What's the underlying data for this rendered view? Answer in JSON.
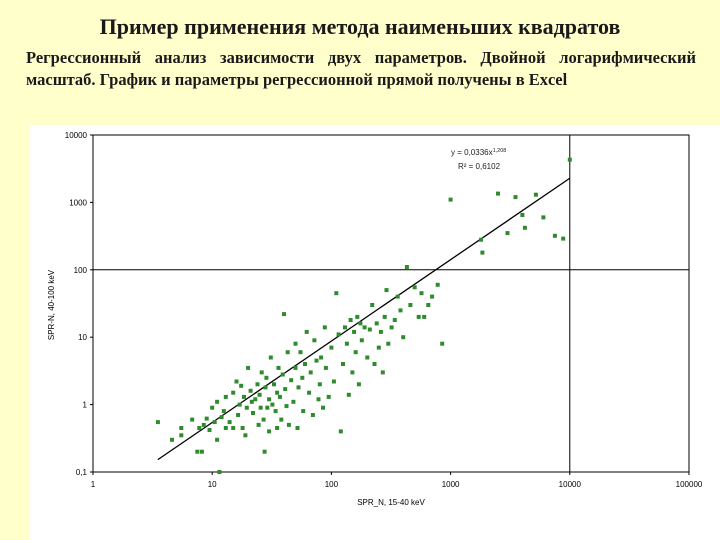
{
  "slide": {
    "title": "Пример применения метода наименьших квадратов",
    "subtitle": "Регрессионный анализ зависимости двух параметров. Двойной логарифмический масштаб. График и параметры регрессионной прямой получены в Excel"
  },
  "colors": {
    "background": "#ffffcc",
    "plot_background": "#ffffff",
    "points": "#2e8b2e",
    "trendline": "#000000",
    "reference_lines": "#000000"
  },
  "chart_data": {
    "type": "scatter",
    "title": "",
    "xlabel": "SPR_N, 15-40 keV",
    "ylabel": "SPR-N, 40-100 keV",
    "x_scale": "log",
    "y_scale": "log",
    "xlim": [
      1,
      100000
    ],
    "ylim": [
      0.1,
      10000
    ],
    "x_ticks": [
      1,
      10,
      100,
      1000,
      10000,
      100000
    ],
    "x_tick_labels": [
      "1",
      "10",
      "100",
      "1000",
      "10000",
      "100000"
    ],
    "y_ticks": [
      0.1,
      1,
      10,
      100,
      1000,
      10000
    ],
    "y_tick_labels": [
      "0,1",
      "1",
      "10",
      "100",
      "1000",
      "10000"
    ],
    "grid": false,
    "legend": "none",
    "reference_lines": [
      {
        "orientation": "horizontal",
        "y": 100
      },
      {
        "orientation": "vertical",
        "x": 10000
      }
    ],
    "trendline": {
      "equation_text": "y = 0,0336x^1,208",
      "r2_text": "R² = 0,6102",
      "coefficient": 0.0336,
      "exponent": 1.208,
      "x_range": [
        3.5,
        10000
      ]
    },
    "points": [
      {
        "x": 3.5,
        "y": 0.55
      },
      {
        "x": 4.6,
        "y": 0.3
      },
      {
        "x": 5.5,
        "y": 0.45
      },
      {
        "x": 5.5,
        "y": 0.35
      },
      {
        "x": 6.8,
        "y": 0.6
      },
      {
        "x": 7.5,
        "y": 0.2
      },
      {
        "x": 7.8,
        "y": 0.45
      },
      {
        "x": 8.2,
        "y": 0.2
      },
      {
        "x": 8.5,
        "y": 0.5
      },
      {
        "x": 9.0,
        "y": 0.62
      },
      {
        "x": 9.5,
        "y": 0.42
      },
      {
        "x": 10.0,
        "y": 0.9
      },
      {
        "x": 10.5,
        "y": 0.55
      },
      {
        "x": 11.0,
        "y": 1.1
      },
      {
        "x": 11.0,
        "y": 0.3
      },
      {
        "x": 11.5,
        "y": 0.1
      },
      {
        "x": 12.0,
        "y": 0.65
      },
      {
        "x": 12.5,
        "y": 0.8
      },
      {
        "x": 13.0,
        "y": 1.3
      },
      {
        "x": 13.0,
        "y": 0.45
      },
      {
        "x": 14.0,
        "y": 0.55
      },
      {
        "x": 15.0,
        "y": 1.5
      },
      {
        "x": 15.0,
        "y": 0.45
      },
      {
        "x": 16.0,
        "y": 2.2
      },
      {
        "x": 16.5,
        "y": 0.7
      },
      {
        "x": 17.0,
        "y": 1.0
      },
      {
        "x": 17.5,
        "y": 1.9
      },
      {
        "x": 18.0,
        "y": 0.45
      },
      {
        "x": 18.5,
        "y": 1.3
      },
      {
        "x": 19.0,
        "y": 0.35
      },
      {
        "x": 19.5,
        "y": 0.9
      },
      {
        "x": 20.0,
        "y": 3.5
      },
      {
        "x": 21.0,
        "y": 1.6
      },
      {
        "x": 21.5,
        "y": 1.1
      },
      {
        "x": 22.0,
        "y": 0.75
      },
      {
        "x": 23.0,
        "y": 1.2
      },
      {
        "x": 24.0,
        "y": 2.0
      },
      {
        "x": 24.5,
        "y": 0.5
      },
      {
        "x": 25.0,
        "y": 1.4
      },
      {
        "x": 25.5,
        "y": 0.9
      },
      {
        "x": 26.0,
        "y": 3.0
      },
      {
        "x": 27.0,
        "y": 0.6
      },
      {
        "x": 27.5,
        "y": 0.2
      },
      {
        "x": 28.0,
        "y": 1.8
      },
      {
        "x": 28.5,
        "y": 2.5
      },
      {
        "x": 29.0,
        "y": 0.9
      },
      {
        "x": 30.0,
        "y": 1.2
      },
      {
        "x": 30.0,
        "y": 0.4
      },
      {
        "x": 31.0,
        "y": 5.0
      },
      {
        "x": 32.0,
        "y": 1.0
      },
      {
        "x": 33.0,
        "y": 2.0
      },
      {
        "x": 34.0,
        "y": 0.8
      },
      {
        "x": 35.0,
        "y": 1.5
      },
      {
        "x": 35.0,
        "y": 0.45
      },
      {
        "x": 36.0,
        "y": 3.5
      },
      {
        "x": 37.0,
        "y": 1.3
      },
      {
        "x": 38.0,
        "y": 0.6
      },
      {
        "x": 39.0,
        "y": 2.8
      },
      {
        "x": 40.0,
        "y": 22.0
      },
      {
        "x": 41.0,
        "y": 1.7
      },
      {
        "x": 42.0,
        "y": 0.95
      },
      {
        "x": 43.0,
        "y": 6.0
      },
      {
        "x": 44.0,
        "y": 0.5
      },
      {
        "x": 46.0,
        "y": 2.3
      },
      {
        "x": 48.0,
        "y": 1.1
      },
      {
        "x": 50.0,
        "y": 3.5
      },
      {
        "x": 50.0,
        "y": 8.0
      },
      {
        "x": 52.0,
        "y": 0.45
      },
      {
        "x": 53.0,
        "y": 1.8
      },
      {
        "x": 55.0,
        "y": 6.0
      },
      {
        "x": 57.0,
        "y": 2.5
      },
      {
        "x": 58.0,
        "y": 0.8
      },
      {
        "x": 60.0,
        "y": 4.0
      },
      {
        "x": 62.0,
        "y": 12.0
      },
      {
        "x": 65.0,
        "y": 1.5
      },
      {
        "x": 67.0,
        "y": 3.0
      },
      {
        "x": 70.0,
        "y": 0.7
      },
      {
        "x": 72.0,
        "y": 9.0
      },
      {
        "x": 75.0,
        "y": 4.5
      },
      {
        "x": 78.0,
        "y": 1.2
      },
      {
        "x": 80.0,
        "y": 2.0
      },
      {
        "x": 82.0,
        "y": 5.0
      },
      {
        "x": 85.0,
        "y": 0.9
      },
      {
        "x": 88.0,
        "y": 14.0
      },
      {
        "x": 90.0,
        "y": 3.5
      },
      {
        "x": 95.0,
        "y": 1.3
      },
      {
        "x": 100.0,
        "y": 7.0
      },
      {
        "x": 105.0,
        "y": 2.2
      },
      {
        "x": 110.0,
        "y": 45.0
      },
      {
        "x": 115.0,
        "y": 11.0
      },
      {
        "x": 120.0,
        "y": 0.4
      },
      {
        "x": 125.0,
        "y": 4.0
      },
      {
        "x": 130.0,
        "y": 14.0
      },
      {
        "x": 135.0,
        "y": 8.0
      },
      {
        "x": 140.0,
        "y": 1.4
      },
      {
        "x": 145.0,
        "y": 18.0
      },
      {
        "x": 150.0,
        "y": 3.0
      },
      {
        "x": 155.0,
        "y": 12.0
      },
      {
        "x": 160.0,
        "y": 6.0
      },
      {
        "x": 165.0,
        "y": 20.0
      },
      {
        "x": 170.0,
        "y": 2.0
      },
      {
        "x": 175.0,
        "y": 16.0
      },
      {
        "x": 180.0,
        "y": 9.0
      },
      {
        "x": 190.0,
        "y": 14.0
      },
      {
        "x": 200.0,
        "y": 5.0
      },
      {
        "x": 210.0,
        "y": 13.0
      },
      {
        "x": 220.0,
        "y": 30.0
      },
      {
        "x": 230.0,
        "y": 4.0
      },
      {
        "x": 240.0,
        "y": 16.0
      },
      {
        "x": 250.0,
        "y": 7.0
      },
      {
        "x": 260.0,
        "y": 12.0
      },
      {
        "x": 270.0,
        "y": 3.0
      },
      {
        "x": 280.0,
        "y": 20.0
      },
      {
        "x": 290.0,
        "y": 50.0
      },
      {
        "x": 300.0,
        "y": 8.0
      },
      {
        "x": 320.0,
        "y": 14.0
      },
      {
        "x": 340.0,
        "y": 18.0
      },
      {
        "x": 360.0,
        "y": 40.0
      },
      {
        "x": 380.0,
        "y": 25.0
      },
      {
        "x": 400.0,
        "y": 10.0
      },
      {
        "x": 430.0,
        "y": 110.0
      },
      {
        "x": 460.0,
        "y": 30.0
      },
      {
        "x": 500.0,
        "y": 55.0
      },
      {
        "x": 540.0,
        "y": 20.0
      },
      {
        "x": 570.0,
        "y": 45.0
      },
      {
        "x": 600.0,
        "y": 20.0
      },
      {
        "x": 650.0,
        "y": 30.0
      },
      {
        "x": 700.0,
        "y": 40.0
      },
      {
        "x": 780.0,
        "y": 60.0
      },
      {
        "x": 850.0,
        "y": 8.0
      },
      {
        "x": 1000.0,
        "y": 1100.0
      },
      {
        "x": 1800.0,
        "y": 280.0
      },
      {
        "x": 1850.0,
        "y": 180.0
      },
      {
        "x": 2500.0,
        "y": 1350.0
      },
      {
        "x": 3000.0,
        "y": 350.0
      },
      {
        "x": 3500.0,
        "y": 1200.0
      },
      {
        "x": 4000.0,
        "y": 650.0
      },
      {
        "x": 4200.0,
        "y": 420.0
      },
      {
        "x": 5200.0,
        "y": 1300.0
      },
      {
        "x": 6000.0,
        "y": 600.0
      },
      {
        "x": 7500.0,
        "y": 320.0
      },
      {
        "x": 8800.0,
        "y": 290.0
      },
      {
        "x": 10000.0,
        "y": 4300.0
      }
    ]
  }
}
